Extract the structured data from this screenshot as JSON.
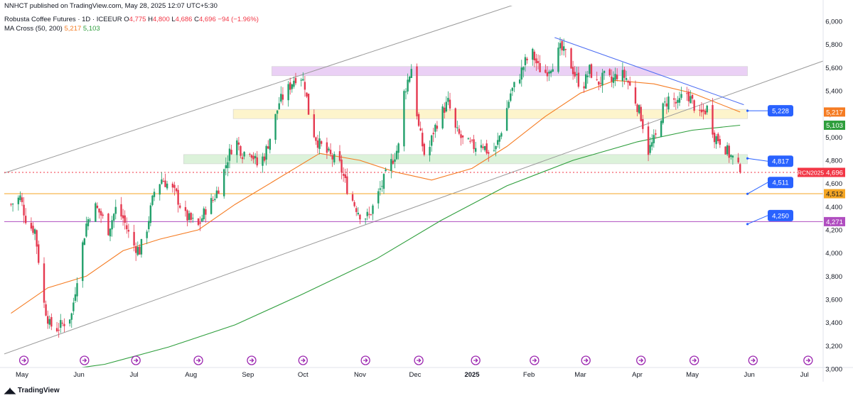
{
  "publish_line": "NNHCT published on TradingView.com, May 28, 2025 12:07 UTC+5:30",
  "symbol": {
    "name": "Robusta Coffee Futures · 1D · ICEEUR",
    "open_label": "O",
    "open": "4,775",
    "high_label": "H",
    "high": "4,800",
    "low_label": "L",
    "low": "4,686",
    "close_label": "C",
    "close": "4,696",
    "change": "−94 (−1.96%)"
  },
  "indicator": {
    "name": "MA Cross (50, 200)",
    "ma50_value": "5,217",
    "ma200_value": "5,103"
  },
  "brand": "TradingView",
  "colors": {
    "up": "#22a06b",
    "down": "#e53950",
    "ma50": "#f57c23",
    "ma200": "#2e9e3c",
    "zone_purple": "#e7c8f4",
    "zone_yellow": "#fdf3c4",
    "zone_green": "#d6f0d4",
    "channel": "#9a9a9a",
    "trend_blue": "#4b6cf2",
    "last_price": "#f23645",
    "level_orange": "#f5a623",
    "level_purple": "#b04ec0",
    "callout_blue": "#2962ff"
  },
  "chart_data": {
    "type": "candlestick",
    "y_range": [
      3000,
      6000
    ],
    "y_ticks": [
      "3,000",
      "3,200",
      "3,400",
      "3,600",
      "3,800",
      "4,000",
      "4,200",
      "4,400",
      "4,600",
      "4,800",
      "5,000",
      "5,200",
      "5,400",
      "5,600",
      "5,800",
      "6,000"
    ],
    "x_range": [
      "2024-05-01",
      "2025-07-05"
    ],
    "x_ticks": [
      {
        "date": "2024-05-01",
        "label": "May"
      },
      {
        "date": "2024-06-01",
        "label": "Jun"
      },
      {
        "date": "2024-07-01",
        "label": "Jul"
      },
      {
        "date": "2024-08-01",
        "label": "Aug"
      },
      {
        "date": "2024-09-01",
        "label": "Sep"
      },
      {
        "date": "2024-10-01",
        "label": "Oct"
      },
      {
        "date": "2024-11-01",
        "label": "Nov"
      },
      {
        "date": "2024-12-01",
        "label": "Dec"
      },
      {
        "date": "2025-01-01",
        "label": "2025",
        "bold": true
      },
      {
        "date": "2025-02-01",
        "label": "Feb"
      },
      {
        "date": "2025-03-01",
        "label": "Mar"
      },
      {
        "date": "2025-04-01",
        "label": "Apr"
      },
      {
        "date": "2025-05-01",
        "label": "May"
      },
      {
        "date": "2025-06-01",
        "label": "Jun"
      },
      {
        "date": "2025-07-01",
        "label": "Jul"
      }
    ],
    "close_path": [
      [
        "2024-04-25",
        4420
      ],
      [
        "2024-04-30",
        4480
      ],
      [
        "2024-05-04",
        4240
      ],
      [
        "2024-05-08",
        4200
      ],
      [
        "2024-05-13",
        3560
      ],
      [
        "2024-05-16",
        3380
      ],
      [
        "2024-05-20",
        3350
      ],
      [
        "2024-05-24",
        3400
      ],
      [
        "2024-05-28",
        3470
      ],
      [
        "2024-06-01",
        3900
      ],
      [
        "2024-06-05",
        4250
      ],
      [
        "2024-06-09",
        4420
      ],
      [
        "2024-06-13",
        4330
      ],
      [
        "2024-06-17",
        4200
      ],
      [
        "2024-06-21",
        4380
      ],
      [
        "2024-06-25",
        4300
      ],
      [
        "2024-06-30",
        4080
      ],
      [
        "2024-07-04",
        4020
      ],
      [
        "2024-07-08",
        4220
      ],
      [
        "2024-07-12",
        4530
      ],
      [
        "2024-07-16",
        4640
      ],
      [
        "2024-07-20",
        4580
      ],
      [
        "2024-07-24",
        4500
      ],
      [
        "2024-07-28",
        4330
      ],
      [
        "2024-08-01",
        4280
      ],
      [
        "2024-08-05",
        4230
      ],
      [
        "2024-08-09",
        4380
      ],
      [
        "2024-08-13",
        4460
      ],
      [
        "2024-08-17",
        4600
      ],
      [
        "2024-08-21",
        4820
      ],
      [
        "2024-08-25",
        4990
      ],
      [
        "2024-08-29",
        4860
      ],
      [
        "2024-09-02",
        4900
      ],
      [
        "2024-09-06",
        4760
      ],
      [
        "2024-09-10",
        4840
      ],
      [
        "2024-09-14",
        5050
      ],
      [
        "2024-09-18",
        5300
      ],
      [
        "2024-09-22",
        5390
      ],
      [
        "2024-09-26",
        5500
      ],
      [
        "2024-09-29",
        5560
      ],
      [
        "2024-10-02",
        5450
      ],
      [
        "2024-10-05",
        5100
      ],
      [
        "2024-10-09",
        4960
      ],
      [
        "2024-10-13",
        4880
      ],
      [
        "2024-10-17",
        4820
      ],
      [
        "2024-10-21",
        4760
      ],
      [
        "2024-10-25",
        4560
      ],
      [
        "2024-10-29",
        4420
      ],
      [
        "2024-11-02",
        4310
      ],
      [
        "2024-11-06",
        4320
      ],
      [
        "2024-11-10",
        4470
      ],
      [
        "2024-11-14",
        4630
      ],
      [
        "2024-11-18",
        4780
      ],
      [
        "2024-11-22",
        4920
      ],
      [
        "2024-11-25",
        5380
      ],
      [
        "2024-11-29",
        5600
      ],
      [
        "2024-12-03",
        5080
      ],
      [
        "2024-12-07",
        4780
      ],
      [
        "2024-12-11",
        5050
      ],
      [
        "2024-12-15",
        5200
      ],
      [
        "2024-12-19",
        5300
      ],
      [
        "2024-12-23",
        5060
      ],
      [
        "2024-12-28",
        4950
      ],
      [
        "2025-01-02",
        4920
      ],
      [
        "2025-01-06",
        4960
      ],
      [
        "2025-01-10",
        4860
      ],
      [
        "2025-01-14",
        4900
      ],
      [
        "2025-01-18",
        5120
      ],
      [
        "2025-01-22",
        5380
      ],
      [
        "2025-01-26",
        5500
      ],
      [
        "2025-01-30",
        5650
      ],
      [
        "2025-02-03",
        5720
      ],
      [
        "2025-02-06",
        5600
      ],
      [
        "2025-02-10",
        5560
      ],
      [
        "2025-02-14",
        5640
      ],
      [
        "2025-02-18",
        5760
      ],
      [
        "2025-02-22",
        5700
      ],
      [
        "2025-02-26",
        5540
      ],
      [
        "2025-03-02",
        5420
      ],
      [
        "2025-03-06",
        5580
      ],
      [
        "2025-03-10",
        5460
      ],
      [
        "2025-03-14",
        5520
      ],
      [
        "2025-03-18",
        5480
      ],
      [
        "2025-03-22",
        5560
      ],
      [
        "2025-03-26",
        5510
      ],
      [
        "2025-03-30",
        5360
      ],
      [
        "2025-04-03",
        5180
      ],
      [
        "2025-04-07",
        4880
      ],
      [
        "2025-04-11",
        5000
      ],
      [
        "2025-04-15",
        5250
      ],
      [
        "2025-04-19",
        5360
      ],
      [
        "2025-04-23",
        5270
      ],
      [
        "2025-04-27",
        5410
      ],
      [
        "2025-05-01",
        5300
      ],
      [
        "2025-05-05",
        5180
      ],
      [
        "2025-05-09",
        5250
      ],
      [
        "2025-05-13",
        5010
      ],
      [
        "2025-05-17",
        4960
      ],
      [
        "2025-05-21",
        4850
      ],
      [
        "2025-05-24",
        4800
      ],
      [
        "2025-05-27",
        4696
      ]
    ],
    "ma50_path": [
      [
        "2024-04-25",
        3480
      ],
      [
        "2024-05-15",
        3700
      ],
      [
        "2024-06-05",
        3800
      ],
      [
        "2024-06-25",
        4020
      ],
      [
        "2024-07-15",
        4120
      ],
      [
        "2024-08-05",
        4200
      ],
      [
        "2024-08-25",
        4420
      ],
      [
        "2024-09-15",
        4620
      ],
      [
        "2024-10-10",
        4860
      ],
      [
        "2024-11-01",
        4800
      ],
      [
        "2024-11-20",
        4700
      ],
      [
        "2024-12-10",
        4630
      ],
      [
        "2025-01-01",
        4730
      ],
      [
        "2025-01-20",
        4920
      ],
      [
        "2025-02-10",
        5180
      ],
      [
        "2025-03-01",
        5380
      ],
      [
        "2025-03-20",
        5490
      ],
      [
        "2025-04-10",
        5460
      ],
      [
        "2025-05-01",
        5380
      ],
      [
        "2025-05-27",
        5217
      ]
    ],
    "ma200_path": [
      [
        "2024-05-10",
        2960
      ],
      [
        "2024-06-15",
        3040
      ],
      [
        "2024-07-20",
        3190
      ],
      [
        "2024-08-25",
        3380
      ],
      [
        "2024-09-30",
        3640
      ],
      [
        "2024-11-10",
        3950
      ],
      [
        "2024-12-15",
        4280
      ],
      [
        "2025-01-20",
        4580
      ],
      [
        "2025-02-25",
        4800
      ],
      [
        "2025-04-01",
        4960
      ],
      [
        "2025-05-01",
        5060
      ],
      [
        "2025-05-27",
        5103
      ]
    ],
    "zones": [
      {
        "from": "2024-09-14",
        "to": "2025-05-31",
        "low": 5530,
        "high": 5610,
        "color": "zone_purple"
      },
      {
        "from": "2024-08-24",
        "to": "2025-05-31",
        "low": 5160,
        "high": 5240,
        "color": "zone_yellow"
      },
      {
        "from": "2024-07-28",
        "to": "2025-05-31",
        "low": 4770,
        "high": 4850,
        "color": "zone_green"
      }
    ],
    "channel_upper": [
      [
        "2024-04-25",
        4710
      ],
      [
        "2025-01-12",
        6080
      ]
    ],
    "channel_lower": [
      [
        "2024-04-25",
        3150
      ],
      [
        "2025-06-24",
        5560
      ]
    ],
    "trendline": [
      [
        "2025-02-15",
        5860
      ],
      [
        "2025-05-29",
        5280
      ]
    ],
    "h_lines": [
      {
        "value": 4512,
        "color": "level_orange"
      },
      {
        "value": 4271,
        "color": "level_purple"
      },
      {
        "value": 4696,
        "color": "last_price",
        "dashed": true
      }
    ],
    "targets": [
      {
        "value": 5228,
        "anchor_date": "2025-05-31",
        "anchor_value": 5228,
        "label": "5,228"
      },
      {
        "value": 4817,
        "anchor_date": "2025-05-31",
        "anchor_value": 4817,
        "label": "4,817"
      },
      {
        "value": 4511,
        "anchor_date": "2025-05-31",
        "anchor_value": 4511,
        "label": "4,511"
      },
      {
        "value": 4250,
        "anchor_date": "2025-05-31",
        "anchor_value": 4250,
        "label": "4,250"
      }
    ],
    "axis_badges": [
      {
        "value": 5217,
        "label": "5,217",
        "color": "ma50"
      },
      {
        "value": 5103,
        "label": "5,103",
        "color": "ma200"
      },
      {
        "value": 4512,
        "label": "4,512",
        "color": "level_orange"
      },
      {
        "value": 4271,
        "label": "4,271",
        "color": "level_purple"
      }
    ],
    "price_label": {
      "ticker": "RCN2025",
      "value": 4696,
      "label": "4,696"
    },
    "event_marker_dates": [
      "2024-05-02",
      "2024-06-04",
      "2024-07-02",
      "2024-08-05",
      "2024-09-03",
      "2024-10-01",
      "2024-11-04",
      "2024-12-03",
      "2025-01-03",
      "2025-02-04",
      "2025-03-04",
      "2025-04-03",
      "2025-05-02",
      "2025-06-03",
      "2025-07-03"
    ]
  }
}
